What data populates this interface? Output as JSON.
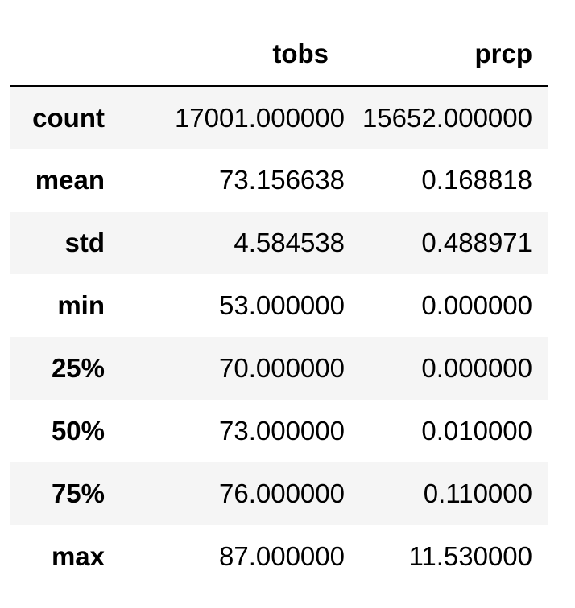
{
  "table": {
    "columns": [
      "tobs",
      "prcp"
    ],
    "rows": [
      {
        "label": "count",
        "tobs": "17001.000000",
        "prcp": "15652.000000"
      },
      {
        "label": "mean",
        "tobs": "73.156638",
        "prcp": "0.168818"
      },
      {
        "label": "std",
        "tobs": "4.584538",
        "prcp": "0.488971"
      },
      {
        "label": "min",
        "tobs": "53.000000",
        "prcp": "0.000000"
      },
      {
        "label": "25%",
        "tobs": "70.000000",
        "prcp": "0.000000"
      },
      {
        "label": "50%",
        "tobs": "73.000000",
        "prcp": "0.010000"
      },
      {
        "label": "75%",
        "tobs": "76.000000",
        "prcp": "0.110000"
      },
      {
        "label": "max",
        "tobs": "87.000000",
        "prcp": "11.530000"
      }
    ]
  }
}
